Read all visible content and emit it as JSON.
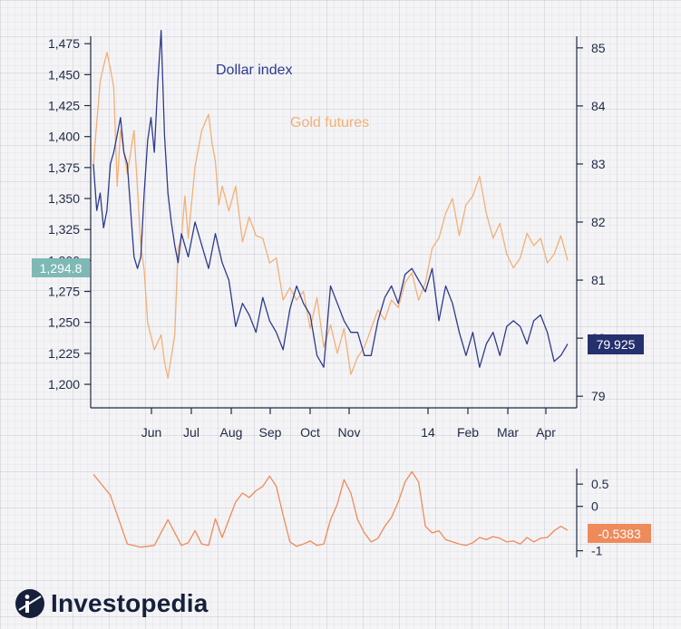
{
  "brand": {
    "name": "Investopedia"
  },
  "colors": {
    "dollar": "#2e3b8c",
    "gold": "#f2b077",
    "osc": "#ef8a5a",
    "axis": "#1f2a44",
    "left_marker": "#7fb9b5",
    "right_marker": "#25306e"
  },
  "chart_data": [
    {
      "type": "line",
      "x_tick_labels": [
        "Jun",
        "Jul",
        "Aug",
        "Sep",
        "Oct",
        "Nov",
        "14",
        "Feb",
        "Mar",
        "Apr"
      ],
      "y_left_ticks": [
        "1,200",
        "1,225",
        "1,250",
        "1,275",
        "1,300",
        "1,325",
        "1,350",
        "1,375",
        "1,400",
        "1,425",
        "1,450",
        "1,475"
      ],
      "y_right_ticks": [
        "79",
        "80",
        "81",
        "82",
        "83",
        "84",
        "85"
      ],
      "ylim_left": [
        1181,
        1481
      ],
      "ylim_right": [
        78.8,
        85.2
      ],
      "left_marker": "1,294.8",
      "right_marker": "79.925",
      "series": [
        {
          "name": "Gold futures",
          "axis": "left",
          "color": "#f2b077",
          "x": [
            0,
            2,
            4,
            5,
            6,
            7,
            8,
            10,
            12,
            14,
            15,
            16,
            18,
            20,
            21,
            22,
            24,
            25,
            26,
            27,
            28,
            30,
            32,
            34,
            35,
            36,
            37,
            38,
            40,
            42,
            44,
            46,
            48,
            50,
            52,
            54,
            56,
            58,
            60,
            62,
            64,
            66,
            68,
            70,
            72,
            74,
            76,
            78,
            80,
            82,
            84,
            86,
            88,
            90,
            92,
            94,
            96,
            98,
            100,
            102,
            104,
            106,
            108,
            110,
            112,
            114,
            116,
            118,
            120,
            122,
            124,
            126,
            128,
            130,
            132,
            134,
            136,
            138,
            140
          ],
          "y": [
            1378,
            1445,
            1468,
            1455,
            1440,
            1360,
            1405,
            1370,
            1405,
            1312,
            1292,
            1250,
            1228,
            1240,
            1218,
            1205,
            1240,
            1310,
            1318,
            1352,
            1318,
            1376,
            1405,
            1418,
            1395,
            1380,
            1345,
            1360,
            1340,
            1360,
            1315,
            1335,
            1320,
            1318,
            1298,
            1302,
            1268,
            1278,
            1268,
            1275,
            1245,
            1270,
            1230,
            1248,
            1225,
            1245,
            1208,
            1222,
            1230,
            1245,
            1260,
            1252,
            1268,
            1262,
            1282,
            1290,
            1268,
            1282,
            1310,
            1318,
            1338,
            1350,
            1320,
            1345,
            1352,
            1368,
            1338,
            1318,
            1330,
            1305,
            1294,
            1302,
            1322,
            1312,
            1318,
            1298,
            1305,
            1320,
            1300
          ]
        },
        {
          "name": "Dollar index",
          "axis": "right",
          "color": "#2e3b8c",
          "x": [
            0,
            1,
            2,
            3,
            4,
            5,
            6,
            7,
            8,
            9,
            10,
            11,
            12,
            13,
            14,
            15,
            16,
            17,
            18,
            19,
            20,
            21,
            22,
            23,
            24,
            25,
            26,
            28,
            30,
            32,
            34,
            36,
            38,
            40,
            42,
            44,
            46,
            48,
            50,
            52,
            54,
            56,
            58,
            60,
            62,
            64,
            66,
            68,
            70,
            72,
            74,
            76,
            78,
            80,
            82,
            84,
            86,
            88,
            90,
            92,
            94,
            96,
            98,
            100,
            102,
            104,
            106,
            108,
            110,
            112,
            114,
            116,
            118,
            120,
            122,
            124,
            126,
            128,
            130,
            132,
            134,
            136,
            138,
            140
          ],
          "y": [
            83.0,
            82.2,
            82.5,
            81.9,
            82.2,
            83.0,
            83.2,
            83.5,
            83.8,
            83.2,
            83.0,
            82.2,
            81.4,
            81.2,
            81.4,
            82.5,
            83.4,
            83.8,
            83.2,
            84.4,
            85.3,
            83.5,
            82.5,
            82.0,
            81.6,
            81.3,
            81.8,
            81.4,
            82.0,
            81.6,
            81.2,
            81.8,
            81.3,
            81.0,
            80.2,
            80.6,
            80.4,
            80.1,
            80.7,
            80.3,
            80.1,
            79.8,
            80.5,
            80.9,
            80.6,
            80.4,
            79.7,
            79.5,
            80.9,
            80.6,
            80.3,
            80.1,
            80.1,
            79.7,
            79.7,
            80.3,
            80.7,
            80.9,
            80.6,
            81.1,
            81.2,
            81.0,
            80.8,
            81.2,
            80.3,
            80.9,
            80.6,
            80.1,
            79.7,
            80.1,
            79.5,
            79.9,
            80.1,
            79.7,
            80.2,
            80.3,
            80.2,
            79.9,
            80.3,
            80.4,
            80.1,
            79.6,
            79.7,
            79.9
          ]
        }
      ]
    },
    {
      "type": "line",
      "y_ticks": [
        "0.5",
        "0",
        "-1"
      ],
      "ylim": [
        -1.15,
        0.85
      ],
      "marker": "-0.5383",
      "series": [
        {
          "color": "#ef8a5a",
          "x": [
            0,
            5,
            10,
            14,
            18,
            22,
            26,
            28,
            30,
            32,
            34,
            36,
            38,
            40,
            42,
            44,
            46,
            48,
            50,
            52,
            54,
            56,
            58,
            60,
            62,
            64,
            66,
            68,
            70,
            72,
            74,
            76,
            78,
            80,
            82,
            84,
            86,
            88,
            90,
            92,
            94,
            96,
            98,
            100,
            102,
            104,
            106,
            108,
            110,
            112,
            114,
            116,
            118,
            120,
            122,
            124,
            126,
            128,
            130,
            132,
            134,
            136,
            138,
            140
          ],
          "y": [
            0.72,
            0.25,
            -0.85,
            -0.92,
            -0.88,
            -0.3,
            -0.88,
            -0.82,
            -0.55,
            -0.85,
            -0.88,
            -0.28,
            -0.7,
            -0.3,
            0.1,
            0.3,
            0.2,
            0.35,
            0.45,
            0.68,
            0.45,
            -0.2,
            -0.8,
            -0.9,
            -0.85,
            -0.78,
            -0.88,
            -0.85,
            -0.3,
            0.05,
            0.6,
            0.3,
            -0.3,
            -0.6,
            -0.8,
            -0.72,
            -0.45,
            -0.25,
            0.1,
            0.55,
            0.78,
            0.55,
            -0.45,
            -0.6,
            -0.55,
            -0.75,
            -0.8,
            -0.85,
            -0.88,
            -0.82,
            -0.7,
            -0.75,
            -0.68,
            -0.72,
            -0.8,
            -0.78,
            -0.85,
            -0.7,
            -0.8,
            -0.72,
            -0.7,
            -0.55,
            -0.45,
            -0.54
          ]
        }
      ]
    }
  ]
}
